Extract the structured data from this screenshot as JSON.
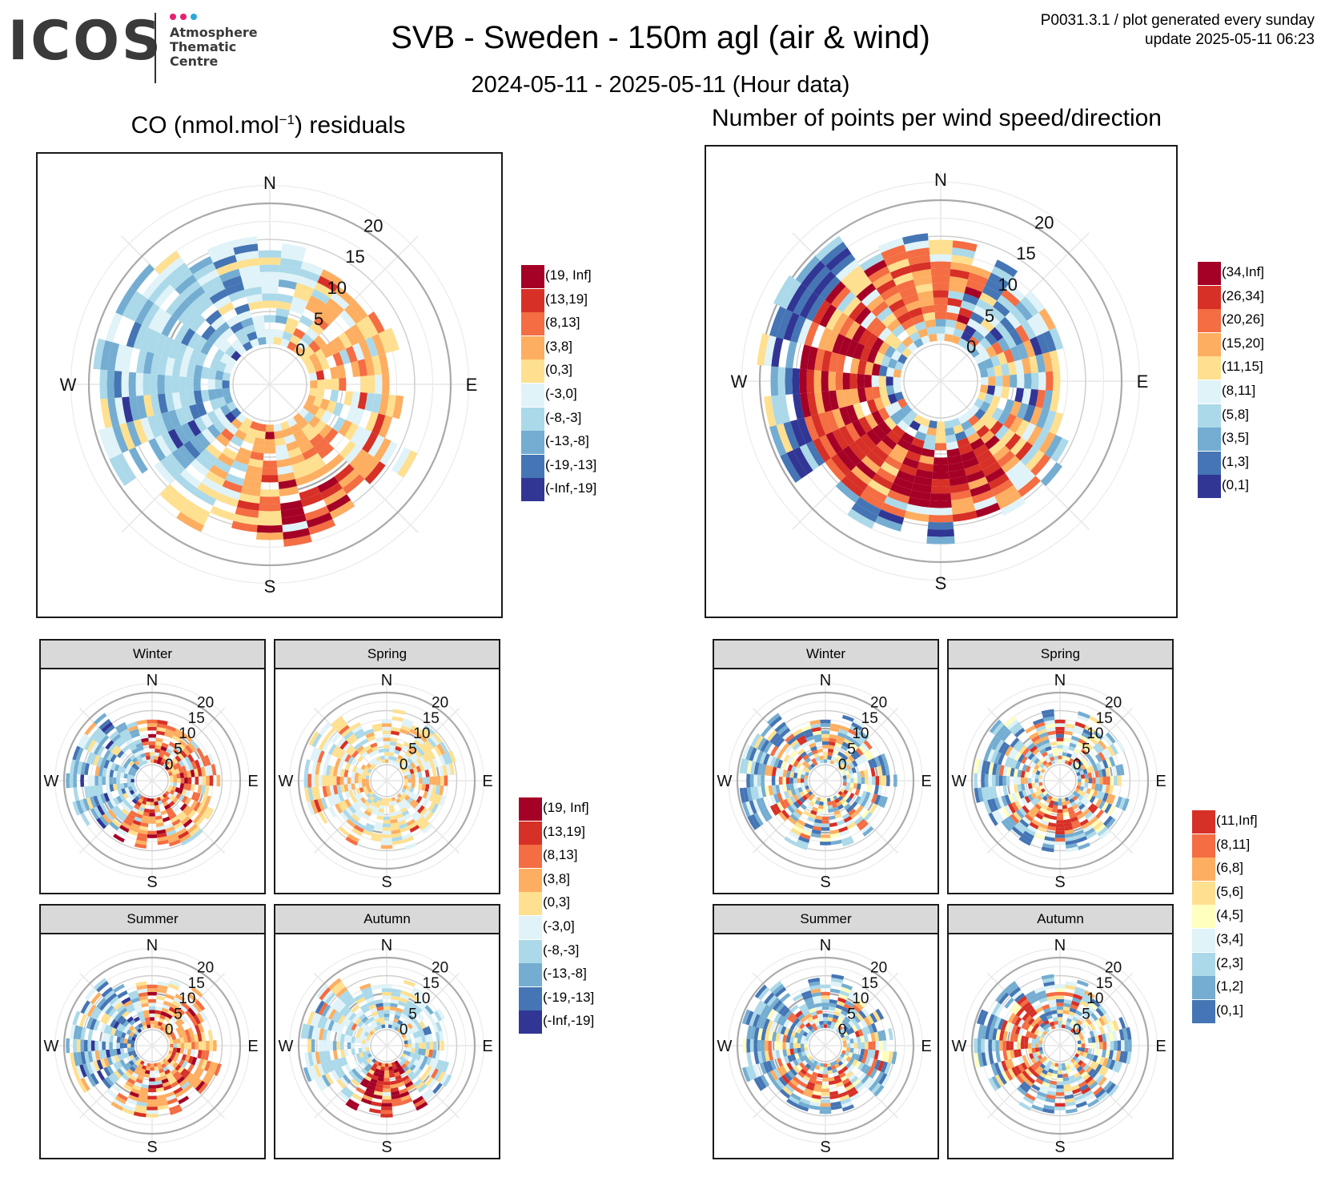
{
  "header": {
    "logo_text": "ICOS",
    "logo_sub": [
      "Atmosphere",
      "Thematic",
      "Centre"
    ],
    "logo_dot_colors": [
      "#e5216e",
      "#e5216e",
      "#2aa8df"
    ],
    "title": "SVB - Sweden - 150m agl (air & wind)",
    "subtitle": "2024-05-11 - 2025-05-11 (Hour data)",
    "meta_line1": "P0031.3.1 / plot generated every sunday",
    "meta_line2": "update  2025-05-11 06:23"
  },
  "left_title": "CO (nmol.mol",
  "left_title_sup": "−1",
  "left_title_tail": ") residuals",
  "right_title": "Number of points per wind speed/direction",
  "facet_labels": [
    "Winter",
    "Spring",
    "Summer",
    "Autumn"
  ],
  "compass": [
    "N",
    "E",
    "S",
    "W"
  ],
  "legends": {
    "co_residuals": {
      "labels": [
        "(19, Inf]",
        "(13,19]",
        "(8,13]",
        "(3,8]",
        "(0,3]",
        "(-3,0]",
        "(-8,-3]",
        "(-13,-8]",
        "(-19,-13]",
        "(-Inf,-19]"
      ],
      "colors": [
        "#a50026",
        "#d73027",
        "#f46d43",
        "#fdae61",
        "#fee090",
        "#e0f3f8",
        "#abd9e9",
        "#74add1",
        "#4575b4",
        "#313695"
      ]
    },
    "count_main": {
      "labels": [
        "(34,Inf]",
        "(26,34]",
        "(20,26]",
        "(15,20]",
        "(11,15]",
        "(8,11]",
        "(5,8]",
        "(3,5]",
        "(1,3]",
        "(0,1]"
      ],
      "colors": [
        "#a50026",
        "#d73027",
        "#f46d43",
        "#fdae61",
        "#fee090",
        "#e0f3f8",
        "#abd9e9",
        "#74add1",
        "#4575b4",
        "#313695"
      ]
    },
    "count_season": {
      "labels": [
        "(11,Inf]",
        "(8,11]",
        "(6,8]",
        "(5,6]",
        "(4,5]",
        "(3,4]",
        "(2,3]",
        "(1,2]",
        "(0,1]"
      ],
      "colors": [
        "#d73027",
        "#f46d43",
        "#fdae61",
        "#fee090",
        "#ffffbf",
        "#e0f3f8",
        "#abd9e9",
        "#74add1",
        "#4575b4"
      ]
    }
  },
  "chart_data": [
    {
      "type": "polar-heatmap",
      "title": "CO (nmol.mol−1) residuals",
      "radial_axis": "wind speed",
      "radial_ticks": [
        0,
        5,
        10,
        15,
        20
      ],
      "angular_axis": "wind direction",
      "angular_labels": [
        "N",
        "E",
        "S",
        "W"
      ],
      "color_bins": [
        "(19, Inf]",
        "(13,19]",
        "(8,13]",
        "(3,8]",
        "(0,3]",
        "(-3,0]",
        "(-8,-3]",
        "(-13,-8]",
        "(-19,-13]",
        "(-Inf,-19]"
      ],
      "sectors": [
        {
          "direction": "N",
          "speed_range": [
            2,
            16
          ],
          "dominant_bin": "(-3,0]"
        },
        {
          "direction": "NE",
          "speed_range": [
            2,
            16
          ],
          "dominant_bin": "(3,8]"
        },
        {
          "direction": "E",
          "speed_range": [
            2,
            13
          ],
          "dominant_bin": "(0,3]"
        },
        {
          "direction": "SE",
          "speed_range": [
            2,
            17
          ],
          "dominant_bin": "(8,13]"
        },
        {
          "direction": "S",
          "speed_range": [
            2,
            17
          ],
          "dominant_bin": "(8,13]"
        },
        {
          "direction": "SW",
          "speed_range": [
            2,
            14
          ],
          "dominant_bin": "(0,3]"
        },
        {
          "direction": "W",
          "speed_range": [
            2,
            20
          ],
          "dominant_bin": "(-8,-3]"
        },
        {
          "direction": "NW",
          "speed_range": [
            2,
            20
          ],
          "dominant_bin": "(-13,-8]"
        }
      ]
    },
    {
      "type": "polar-heatmap",
      "title": "Number of points per wind speed/direction",
      "radial_axis": "wind speed",
      "radial_ticks": [
        0,
        5,
        10,
        15,
        20
      ],
      "angular_labels": [
        "N",
        "E",
        "S",
        "W"
      ],
      "color_bins": [
        "(34,Inf]",
        "(26,34]",
        "(20,26]",
        "(15,20]",
        "(11,15]",
        "(8,11]",
        "(5,8]",
        "(3,5]",
        "(1,3]",
        "(0,1]"
      ],
      "sectors": [
        {
          "direction": "N",
          "speed_range": [
            2,
            17
          ],
          "dominant_bin": "(20,26]"
        },
        {
          "direction": "NE",
          "speed_range": [
            2,
            15
          ],
          "dominant_bin": "(8,11]"
        },
        {
          "direction": "E",
          "speed_range": [
            2,
            14
          ],
          "dominant_bin": "(3,5]"
        },
        {
          "direction": "SE",
          "speed_range": [
            2,
            15
          ],
          "dominant_bin": "(11,15]"
        },
        {
          "direction": "S",
          "speed_range": [
            2,
            17
          ],
          "dominant_bin": "(34,Inf]"
        },
        {
          "direction": "SW",
          "speed_range": [
            2,
            16
          ],
          "dominant_bin": "(26,34]"
        },
        {
          "direction": "W",
          "speed_range": [
            2,
            20
          ],
          "dominant_bin": "(26,34]"
        },
        {
          "direction": "NW",
          "speed_range": [
            2,
            20
          ],
          "dominant_bin": "(1,3]"
        }
      ]
    },
    {
      "type": "polar-heatmap-facets",
      "variable": "CO residuals",
      "facets": [
        "Winter",
        "Spring",
        "Summer",
        "Autumn"
      ],
      "radial_ticks": [
        0,
        5,
        10,
        15,
        20
      ],
      "dominant_bin_by_season": {
        "Winter": "(-8,-3]",
        "Spring": "(0,3]",
        "Summer": "(3,8]",
        "Autumn": "(-8,-3]"
      }
    },
    {
      "type": "polar-heatmap-facets",
      "variable": "Number of points",
      "facets": [
        "Winter",
        "Spring",
        "Summer",
        "Autumn"
      ],
      "radial_ticks": [
        0,
        5,
        10,
        15,
        20
      ],
      "dominant_bin_by_season": {
        "Winter": "(1,2]",
        "Spring": "(2,3]",
        "Summer": "(2,3]",
        "Autumn": "(6,8]"
      }
    }
  ]
}
